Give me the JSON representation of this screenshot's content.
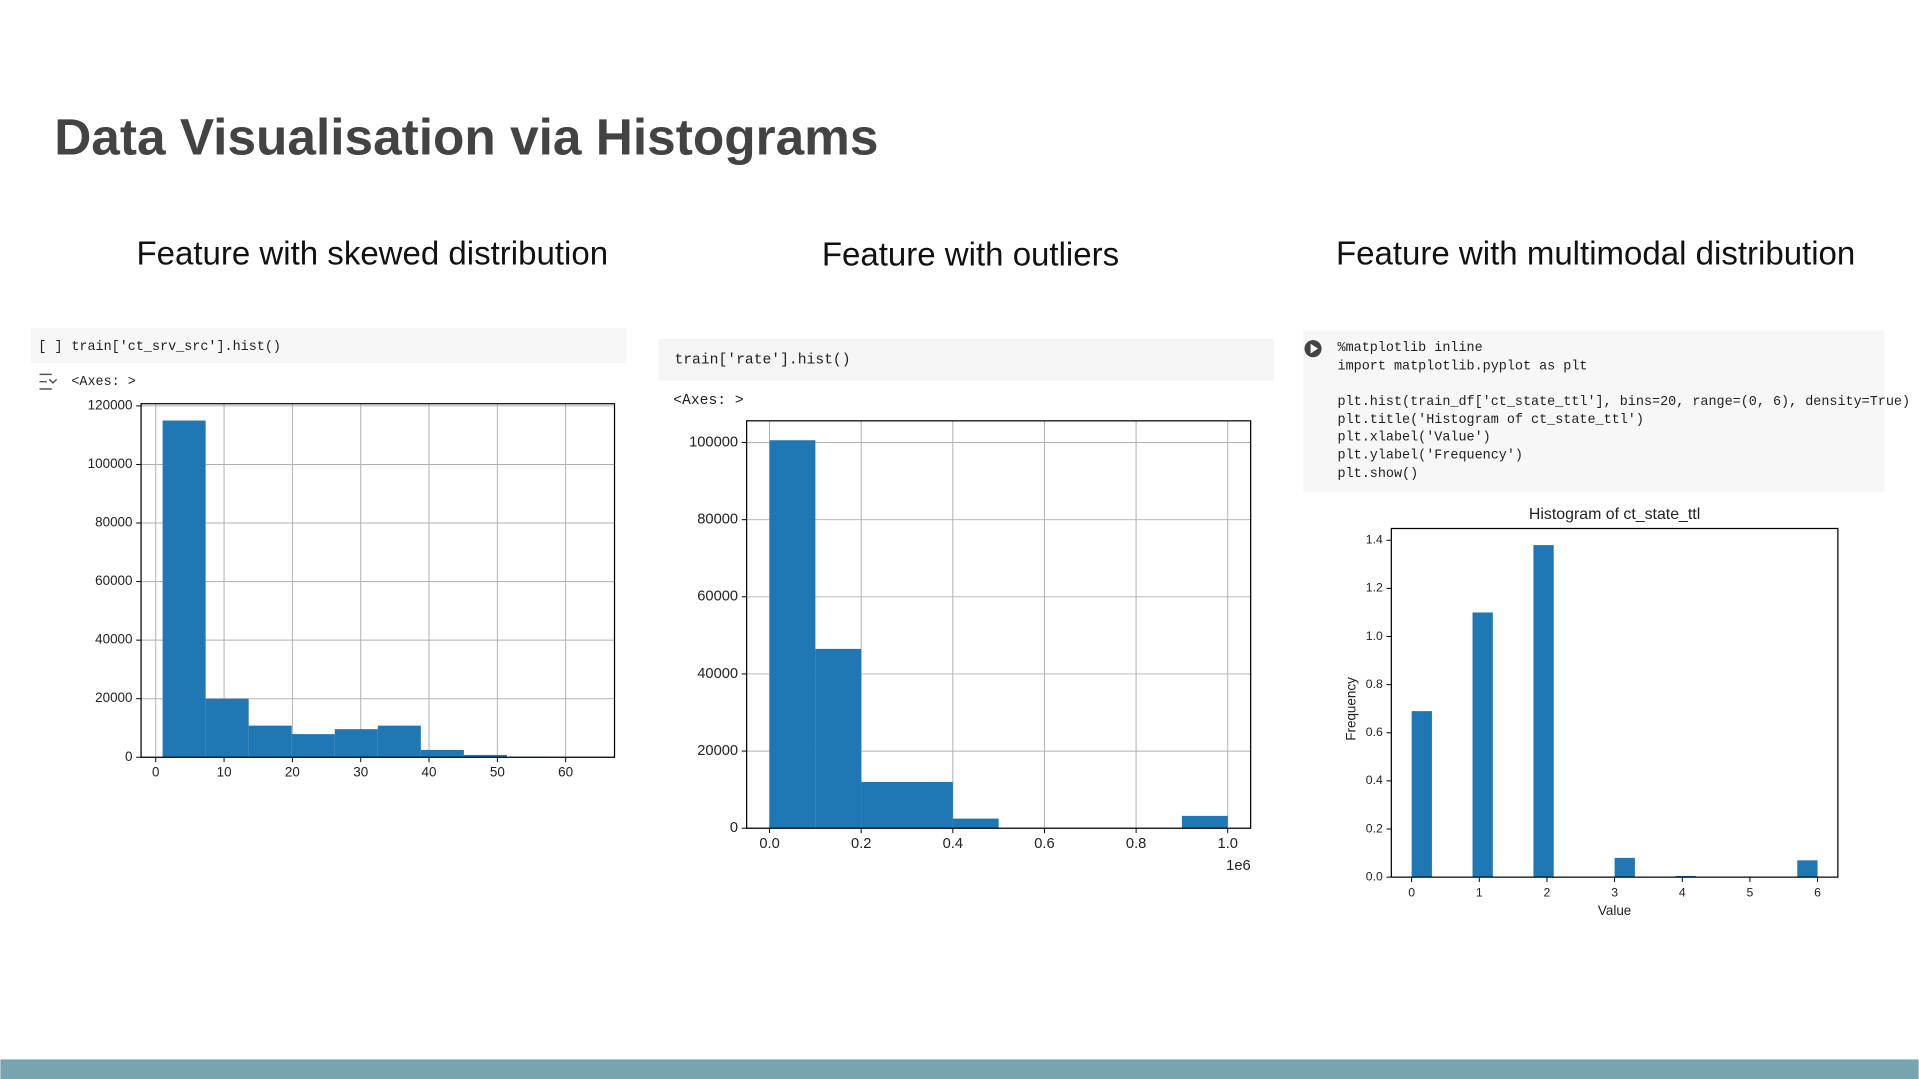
{
  "slide": {
    "title": "Data Visualisation via Histograms"
  },
  "panels": [
    {
      "heading": "Feature with skewed distribution",
      "marker": "[ ]",
      "code": [
        "train['ct_srv_src'].hist()"
      ],
      "output": "<Axes: >"
    },
    {
      "heading": "Feature with outliers",
      "code": [
        "train['rate'].hist()"
      ],
      "output": "<Axes: >"
    },
    {
      "heading": "Feature with multimodal distribution",
      "code": [
        "%matplotlib inline",
        "import matplotlib.pyplot as plt",
        "plt.hist(train_df['ct_state_ttl'], bins=20, range=(0, 6), density=True)",
        "plt.title('Histogram of ct_state_ttl')",
        "plt.xlabel('Value')",
        "plt.ylabel('Frequency')",
        "plt.show()"
      ]
    }
  ],
  "chart_data": [
    {
      "type": "histogram",
      "color": "#1f77b4",
      "grid": true,
      "bins": [
        1,
        7.3,
        13.6,
        19.9,
        26.2,
        32.5,
        38.8,
        45.1,
        51.4,
        57.7,
        64
      ],
      "values": [
        115000,
        20000,
        10800,
        7900,
        9600,
        10800,
        2500,
        800,
        200,
        100
      ],
      "xlim": [
        -2.15,
        67.15
      ],
      "ylim": [
        0,
        120750
      ],
      "xticks": [
        0,
        10,
        20,
        30,
        40,
        50,
        60
      ],
      "yticks": [
        0,
        20000,
        40000,
        60000,
        80000,
        100000,
        120000
      ]
    },
    {
      "type": "histogram",
      "color": "#1f77b4",
      "grid": true,
      "x_offset_label": "1e6",
      "bins": [
        0,
        0.1,
        0.2,
        0.3,
        0.4,
        0.5,
        0.6,
        0.7,
        0.8,
        0.9,
        1
      ],
      "values": [
        100600,
        46500,
        12000,
        12000,
        2500,
        0,
        0,
        0,
        0,
        3200
      ],
      "xlim": [
        -0.05,
        1.05
      ],
      "ylim": [
        0,
        105630
      ],
      "xticks": [
        {
          "value": 0,
          "label": "0.0"
        },
        0.2,
        0.4,
        0.6,
        0.8,
        {
          "value": 1,
          "label": "1.0"
        }
      ],
      "yticks": [
        0,
        20000,
        40000,
        60000,
        80000,
        100000
      ]
    },
    {
      "type": "histogram",
      "color": "#1f77b4",
      "grid": false,
      "title": "Histogram of ct_state_ttl",
      "x_label": "Value",
      "y_label": "Frequency",
      "bins": [
        0,
        0.3,
        0.6,
        0.9,
        1.2,
        1.5,
        1.8,
        2.1,
        2.4,
        2.7,
        3,
        3.3,
        3.6,
        3.9,
        4.2,
        4.5,
        4.8,
        5.1,
        5.4,
        5.7,
        6
      ],
      "values": [
        0.69,
        0,
        0,
        1.1,
        0,
        0,
        1.38,
        0,
        0,
        0,
        0.08,
        0,
        0,
        0.005,
        0,
        0,
        0,
        0,
        0,
        0.07
      ],
      "xlim": [
        -0.3,
        6.3
      ],
      "ylim": [
        0,
        1.449
      ],
      "xticks": [
        0,
        1,
        2,
        3,
        4,
        5,
        6
      ],
      "yticks": [
        {
          "value": 0,
          "label": "0.0"
        },
        0.2,
        0.4,
        0.6,
        0.8,
        {
          "value": 1,
          "label": "1.0"
        },
        1.2,
        1.4
      ]
    }
  ]
}
